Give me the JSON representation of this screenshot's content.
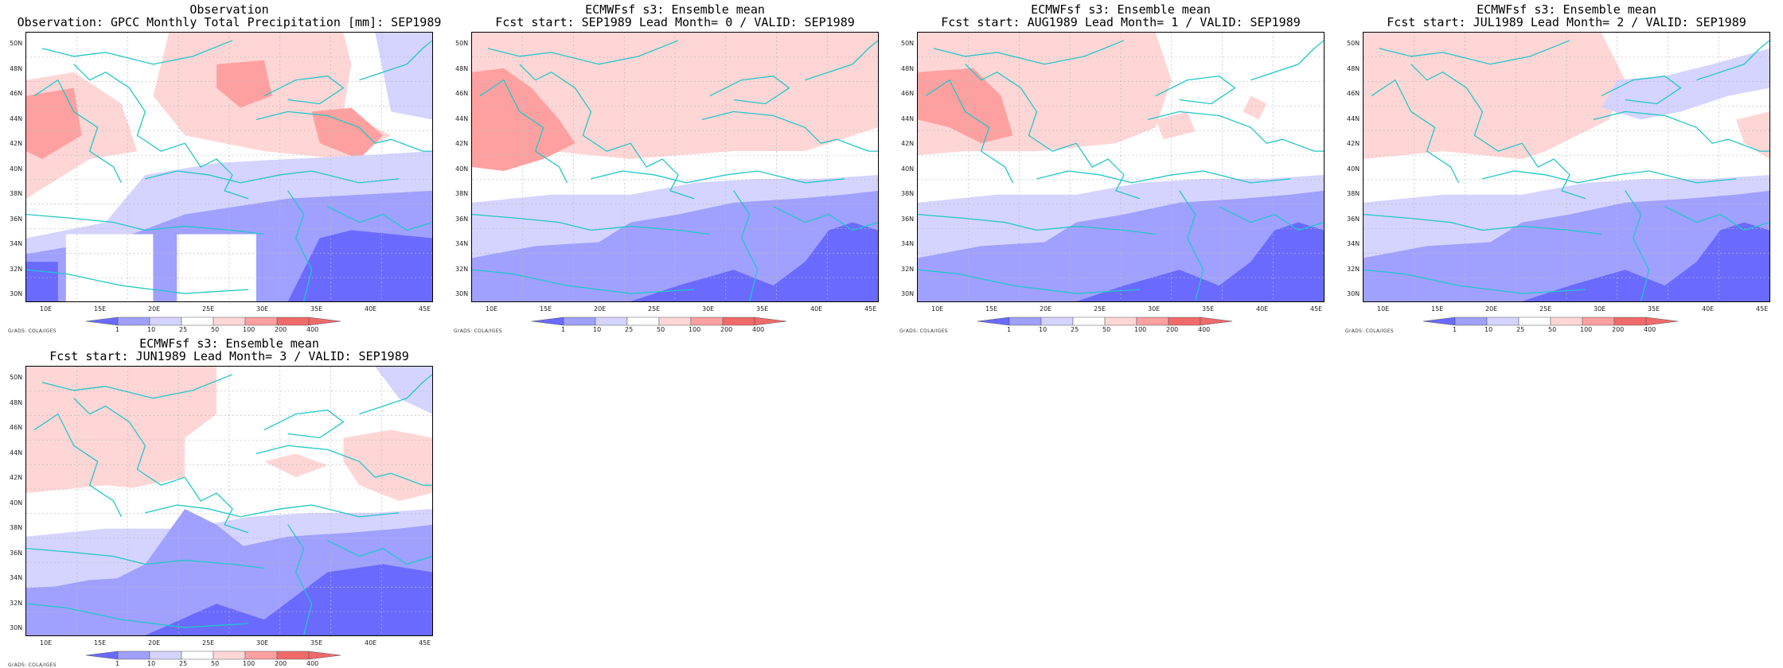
{
  "colors": {
    "coast": "#22c7c7",
    "grid": "#bbbbbb",
    "levels": [
      "#6a6aff",
      "#a0a0ff",
      "#d4d4ff",
      "#ffffff",
      "#ffd6d6",
      "#ffa0a0",
      "#f06a6a"
    ]
  },
  "axes": {
    "lat_labels": [
      "50N",
      "48N",
      "46N",
      "44N",
      "42N",
      "40N",
      "38N",
      "36N",
      "34N",
      "32N",
      "30N"
    ],
    "lon_labels": [
      "10E",
      "15E",
      "20E",
      "25E",
      "30E",
      "35E",
      "40E",
      "45E"
    ]
  },
  "colorbar": {
    "ticks": [
      "1",
      "10",
      "25",
      "50",
      "100",
      "200",
      "400"
    ]
  },
  "credit": "GrADS: COLA/IGES",
  "panels": [
    {
      "title1": "Observation",
      "title2": "Observation: GPCC Monthly Total Precipitation [mm]: SEP1989",
      "type": "observation"
    },
    {
      "title1": "ECMWFsf s3: Ensemble mean",
      "title2": "Fcst start: SEP1989  Lead Month= 0 / VALID: SEP1989",
      "type": "lead0"
    },
    {
      "title1": "ECMWFsf s3: Ensemble mean",
      "title2": "Fcst start: AUG1989  Lead Month= 1 / VALID: SEP1989",
      "type": "lead1"
    },
    {
      "title1": "ECMWFsf s3: Ensemble mean",
      "title2": "Fcst start: JUL1989  Lead Month= 2 / VALID: SEP1989",
      "type": "lead2"
    },
    {
      "title1": "ECMWFsf s3: Ensemble mean",
      "title2": "Fcst start: JUN1989  Lead Month= 3 / VALID: SEP1989",
      "type": "lead3"
    }
  ]
}
